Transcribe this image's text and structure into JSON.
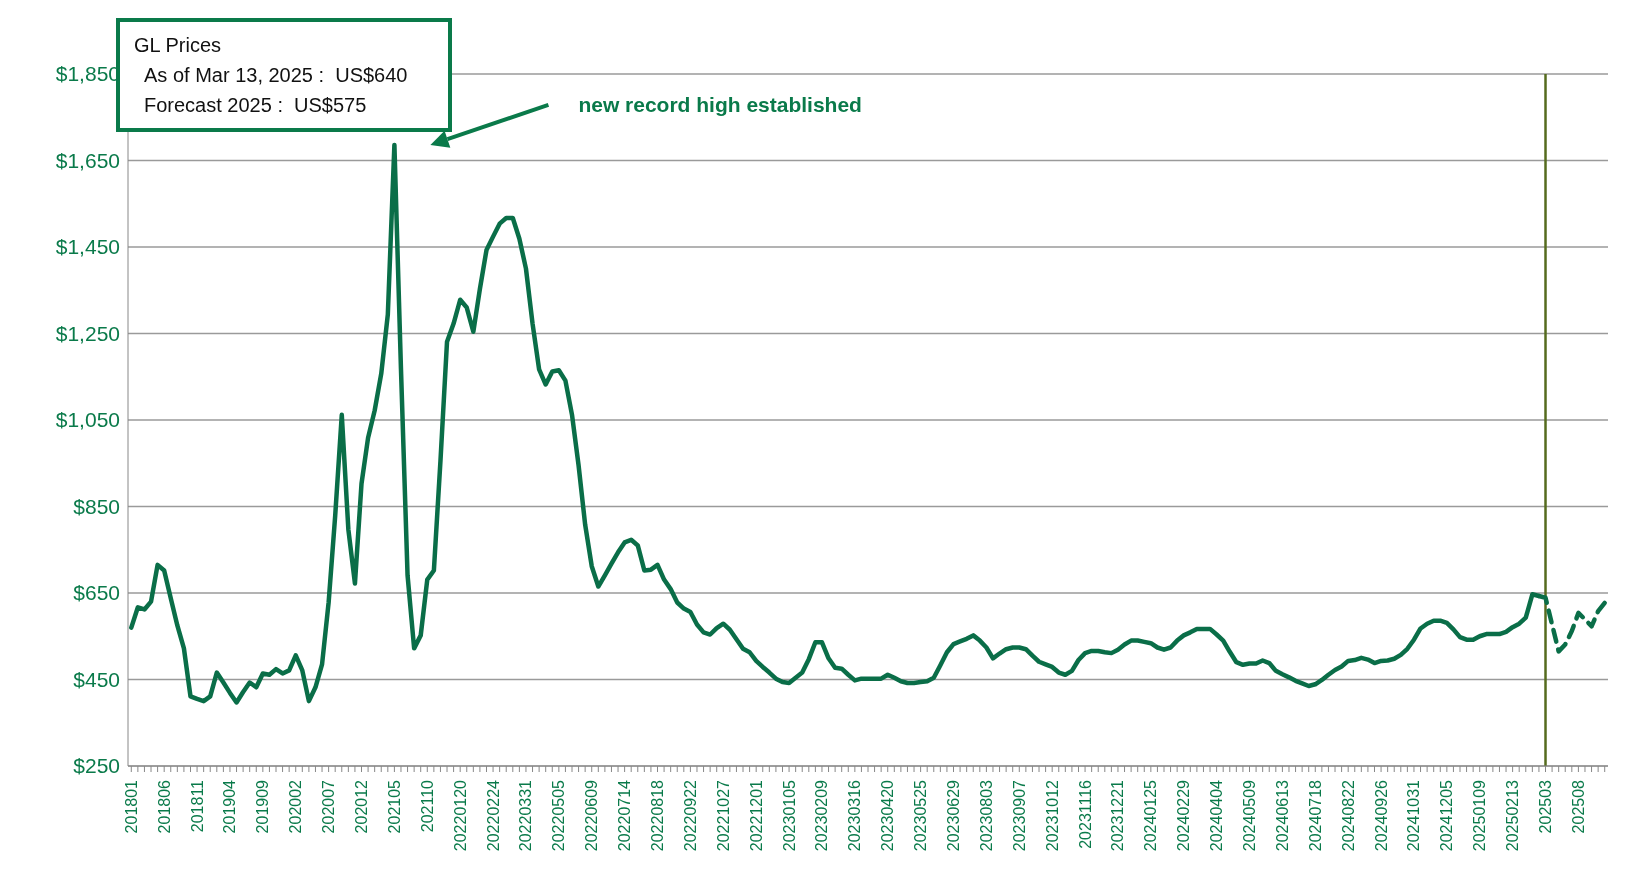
{
  "chart_data": {
    "type": "line",
    "title": "GL Prices",
    "annotations": [
      "As of Mar 13, 2025 :  US$640",
      "Forecast 2025 :  US$575",
      "new record high established"
    ],
    "categories": [
      "201801",
      null,
      null,
      null,
      null,
      "201806",
      null,
      null,
      null,
      null,
      "201811",
      null,
      null,
      null,
      null,
      "201904",
      null,
      null,
      null,
      null,
      "201909",
      null,
      null,
      null,
      null,
      "202002",
      null,
      null,
      null,
      null,
      "202007",
      null,
      null,
      null,
      null,
      "202012",
      null,
      null,
      null,
      null,
      "202105",
      null,
      null,
      null,
      null,
      "202110",
      null,
      null,
      null,
      null,
      "20220120",
      null,
      null,
      null,
      null,
      "20220224",
      null,
      null,
      null,
      null,
      "20220331",
      null,
      null,
      null,
      null,
      "20220505",
      null,
      null,
      null,
      null,
      "20220609",
      null,
      null,
      null,
      null,
      "20220714",
      null,
      null,
      null,
      null,
      "20220818",
      null,
      null,
      null,
      null,
      "20220922",
      null,
      null,
      null,
      null,
      "20221027",
      null,
      null,
      null,
      null,
      "20221201",
      null,
      null,
      null,
      null,
      "20230105",
      null,
      null,
      null,
      null,
      "20230209",
      null,
      null,
      null,
      null,
      "20230316",
      null,
      null,
      null,
      null,
      "20230420",
      null,
      null,
      null,
      null,
      "20230525",
      null,
      null,
      null,
      null,
      "20230629",
      null,
      null,
      null,
      null,
      "20230803",
      null,
      null,
      null,
      null,
      "20230907",
      null,
      null,
      null,
      null,
      "20231012",
      null,
      null,
      null,
      null,
      "20231116",
      null,
      null,
      null,
      null,
      "20231221",
      null,
      null,
      null,
      null,
      "20240125",
      null,
      null,
      null,
      null,
      "20240229",
      null,
      null,
      null,
      null,
      "20240404",
      null,
      null,
      null,
      null,
      "20240509",
      null,
      null,
      null,
      null,
      "20240613",
      null,
      null,
      null,
      null,
      "20240718",
      null,
      null,
      null,
      null,
      "20240822",
      null,
      null,
      null,
      null,
      "20240926",
      null,
      null,
      null,
      null,
      "20241031",
      null,
      null,
      null,
      null,
      "20241205",
      null,
      null,
      null,
      null,
      "20250109",
      null,
      null,
      null,
      null,
      "20250213",
      null,
      null,
      null,
      null,
      "202503",
      null,
      null,
      null,
      null,
      "202508",
      null,
      null,
      null,
      null
    ],
    "series": [
      {
        "color": "#0a6e48",
        "line_style": "solid",
        "values": [
          570,
          617,
          612,
          630,
          715,
          702,
          638,
          575,
          522,
          411,
          405,
          400,
          411,
          466,
          443,
          419,
          397,
          421,
          443,
          432,
          464,
          461,
          474,
          464,
          471,
          506,
          471,
          400,
          432,
          485,
          628,
          829,
          1062,
          797,
          672,
          903,
          1009,
          1072,
          1157,
          1294,
          1686,
          1167,
          691,
          522,
          552,
          681,
          702,
          955,
          1231,
          1273,
          1328,
          1310,
          1254,
          1353,
          1443,
          1474,
          1504,
          1517,
          1517,
          1469,
          1400,
          1273,
          1167,
          1132,
          1162,
          1165,
          1141,
          1062,
          945,
          808,
          712,
          665,
          691,
          718,
          744,
          767,
          773,
          760,
          702,
          704,
          715,
          681,
          659,
          628,
          614,
          606,
          577,
          559,
          554,
          569,
          579,
          565,
          543,
          521,
          513,
          493,
          479,
          466,
          452,
          444,
          442,
          454,
          466,
          497,
          536,
          536,
          499,
          477,
          475,
          461,
          448,
          452,
          452,
          452,
          452,
          461,
          454,
          446,
          442,
          442,
          444,
          446,
          454,
          483,
          513,
          532,
          538,
          544,
          552,
          540,
          524,
          499,
          510,
          520,
          524,
          524,
          520,
          505,
          491,
          485,
          479,
          466,
          461,
          470,
          495,
          511,
          516,
          516,
          513,
          511,
          519,
          531,
          540,
          540,
          537,
          534,
          524,
          519,
          524,
          540,
          552,
          559,
          567,
          567,
          567,
          554,
          540,
          514,
          490,
          484,
          487,
          487,
          494,
          488,
          470,
          462,
          455,
          447,
          441,
          435,
          439,
          449,
          461,
          472,
          480,
          493,
          495,
          500,
          496,
          488,
          493,
          494,
          498,
          507,
          521,
          542,
          568,
          579,
          586,
          586,
          581,
          566,
          548,
          542,
          542,
          550,
          555,
          555,
          555,
          560,
          571,
          579,
          593,
          647,
          643,
          null,
          null,
          null,
          null,
          null,
          null,
          null,
          null,
          null,
          null
        ]
      },
      {
        "color": "#0a6e48",
        "line_style": "dashed",
        "values": [
          null,
          null,
          null,
          null,
          null,
          null,
          null,
          null,
          null,
          null,
          null,
          null,
          null,
          null,
          null,
          null,
          null,
          null,
          null,
          null,
          null,
          null,
          null,
          null,
          null,
          null,
          null,
          null,
          null,
          null,
          null,
          null,
          null,
          null,
          null,
          null,
          null,
          null,
          null,
          null,
          null,
          null,
          null,
          null,
          null,
          null,
          null,
          null,
          null,
          null,
          null,
          null,
          null,
          null,
          null,
          null,
          null,
          null,
          null,
          null,
          null,
          null,
          null,
          null,
          null,
          null,
          null,
          null,
          null,
          null,
          null,
          null,
          null,
          null,
          null,
          null,
          null,
          null,
          null,
          null,
          null,
          null,
          null,
          null,
          null,
          null,
          null,
          null,
          null,
          null,
          null,
          null,
          null,
          null,
          null,
          null,
          null,
          null,
          null,
          null,
          null,
          null,
          null,
          null,
          null,
          null,
          null,
          null,
          null,
          null,
          null,
          null,
          null,
          null,
          null,
          null,
          null,
          null,
          null,
          null,
          null,
          null,
          null,
          null,
          null,
          null,
          null,
          null,
          null,
          null,
          null,
          null,
          null,
          null,
          null,
          null,
          null,
          null,
          null,
          null,
          null,
          null,
          null,
          null,
          null,
          null,
          null,
          null,
          null,
          null,
          null,
          null,
          null,
          null,
          null,
          null,
          null,
          null,
          null,
          null,
          null,
          null,
          null,
          null,
          null,
          null,
          null,
          null,
          null,
          null,
          null,
          null,
          null,
          null,
          null,
          null,
          null,
          null,
          null,
          null,
          null,
          null,
          null,
          null,
          null,
          null,
          null,
          null,
          null,
          null,
          null,
          null,
          null,
          null,
          null,
          null,
          null,
          null,
          null,
          null,
          null,
          null,
          null,
          null,
          null,
          null,
          null,
          null,
          null,
          null,
          null,
          null,
          null,
          null,
          643,
          639,
          577,
          515,
          531,
          562,
          604,
          589,
          573,
          608,
          627
        ]
      }
    ],
    "ylim": [
      250,
      1850
    ],
    "yticks": [
      {
        "value": 250,
        "label": "$250"
      },
      {
        "value": 450,
        "label": "$450"
      },
      {
        "value": 650,
        "label": "$650"
      },
      {
        "value": 850,
        "label": "$850"
      },
      {
        "value": 1050,
        "label": "$1,050"
      },
      {
        "value": 1250,
        "label": "$1,250"
      },
      {
        "value": 1450,
        "label": "$1,450"
      },
      {
        "value": 1650,
        "label": "$1,650"
      },
      {
        "value": 1850,
        "label": "$1,850"
      }
    ],
    "grid": "y",
    "ref_lines": [
      {
        "axis": "x",
        "value": "202503",
        "color": "#556b1e"
      }
    ]
  }
}
